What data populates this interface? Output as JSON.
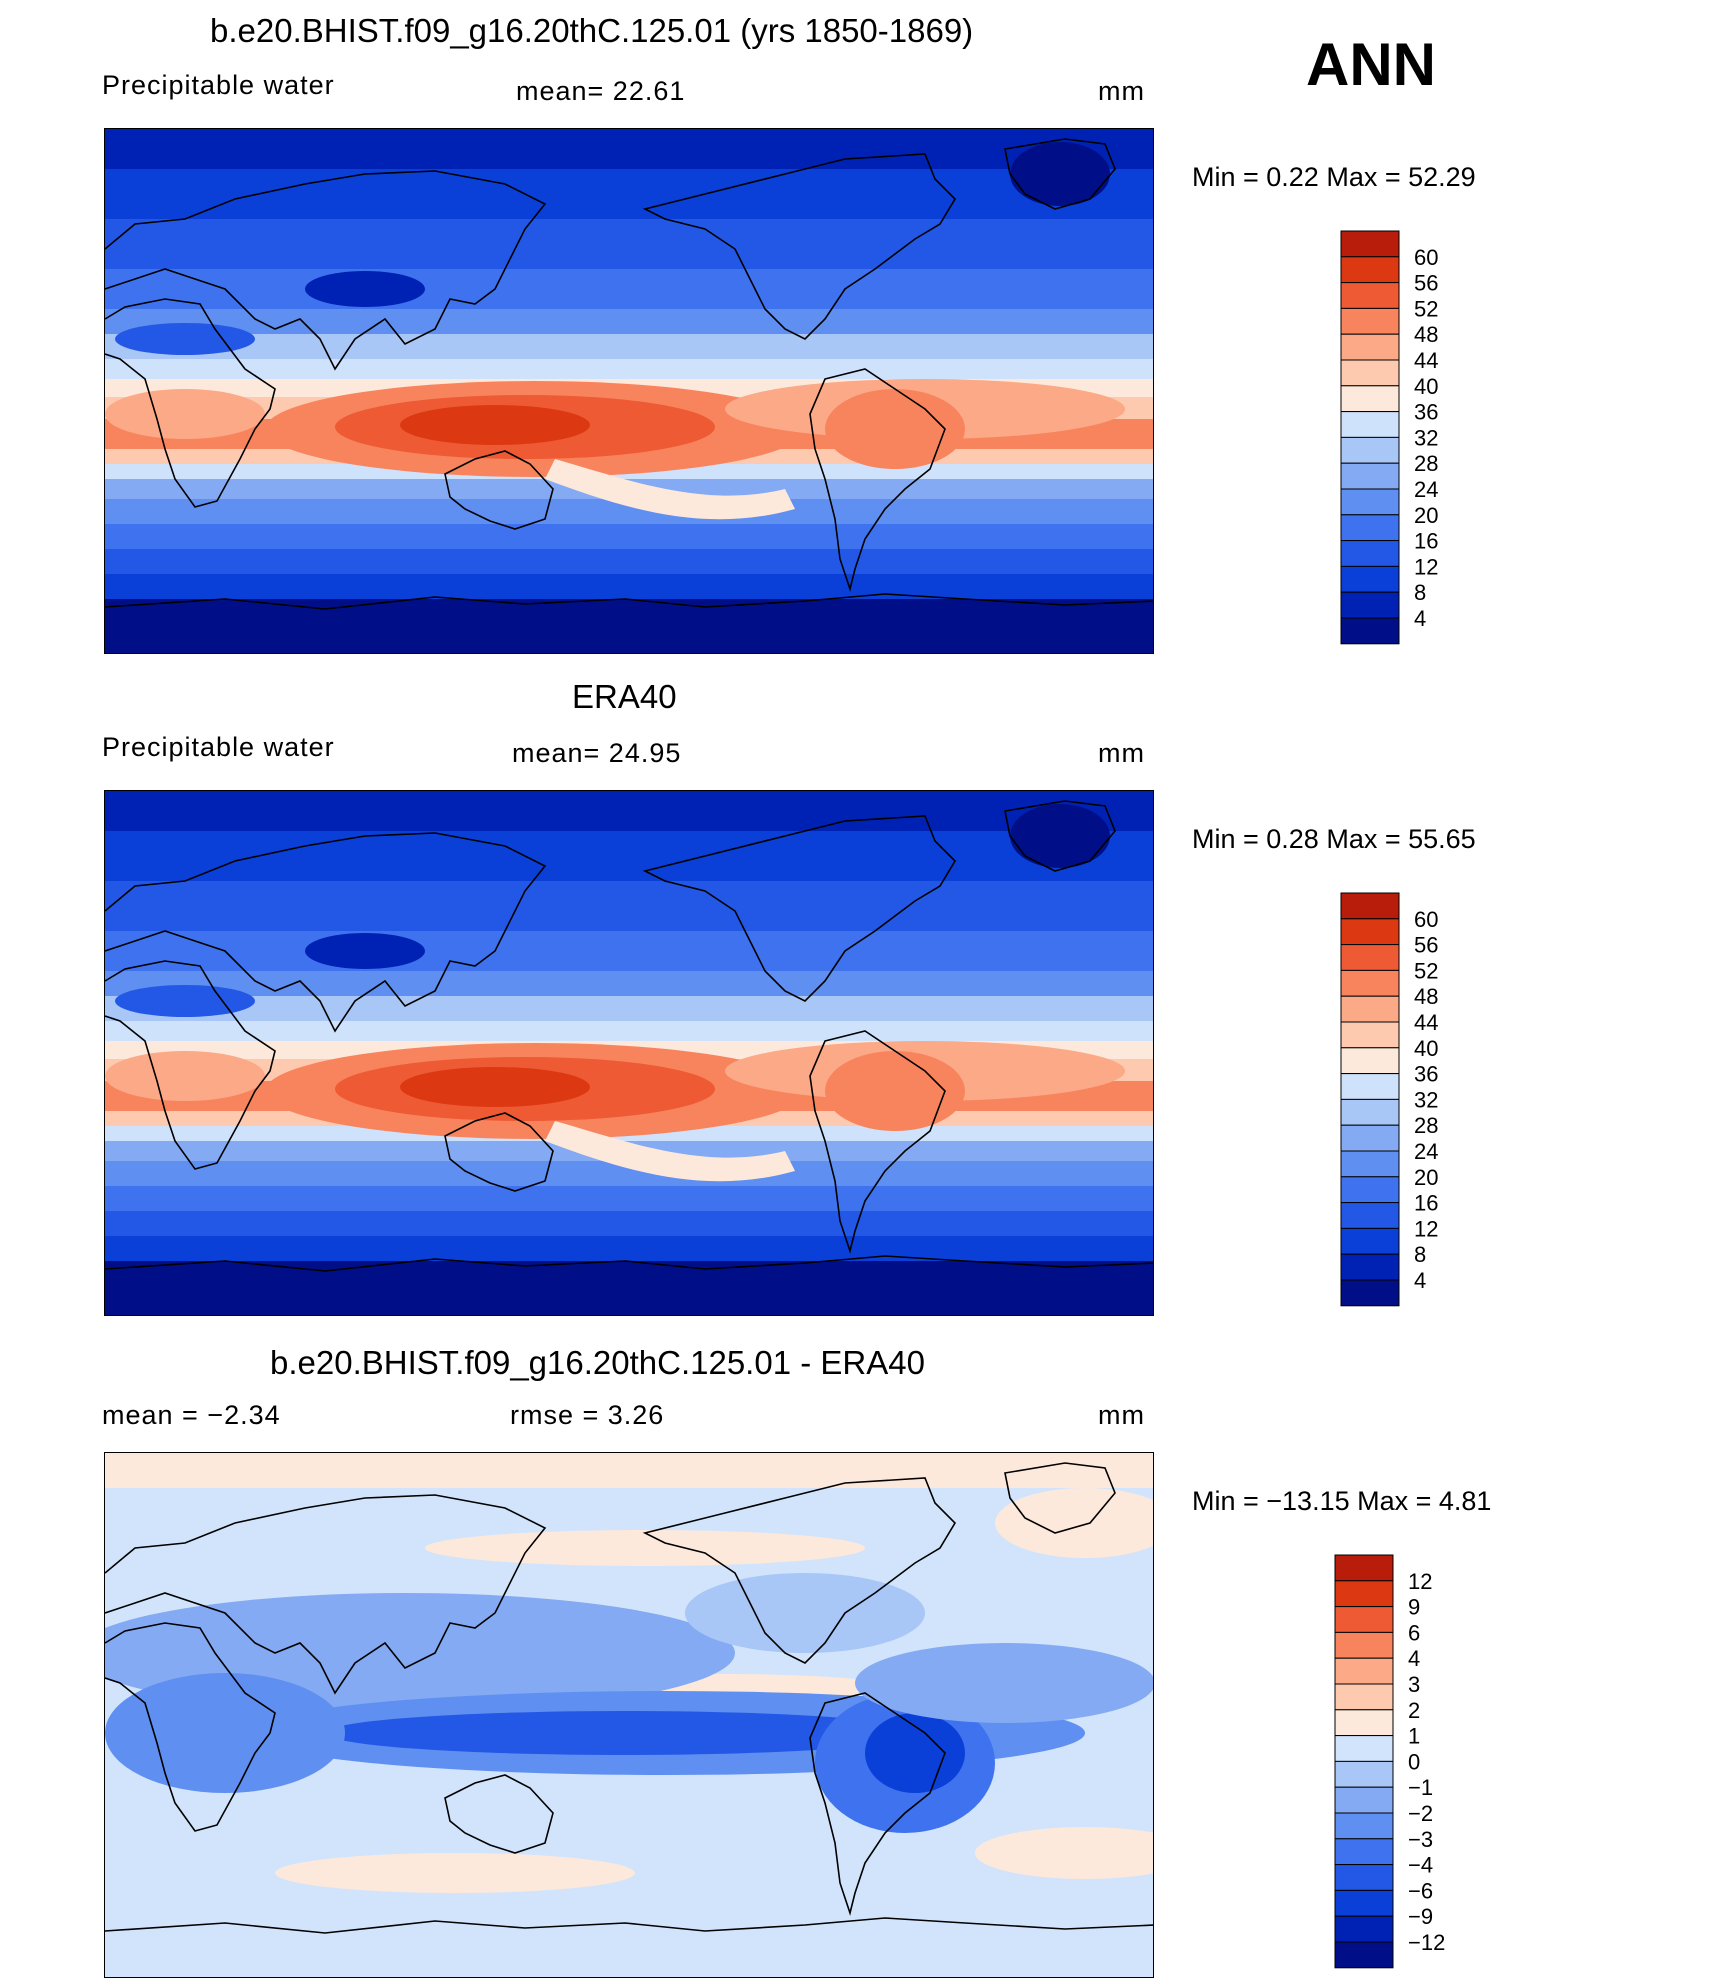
{
  "season": "ANN",
  "colors": {
    "abs_scale": [
      "#000f88",
      "#0022b4",
      "#0a3fd8",
      "#2358e6",
      "#3f72ee",
      "#5f8ff0",
      "#83aaf2",
      "#a8c6f6",
      "#cfe2fb",
      "#fde9dc",
      "#fdcab0",
      "#fca987",
      "#f8845e",
      "#ee5a33",
      "#dc3812",
      "#b81c0a",
      "#8c0a0a"
    ],
    "diff_scale": [
      "#000f88",
      "#0022b4",
      "#0a3fd8",
      "#2358e6",
      "#3f72ee",
      "#5f8ff0",
      "#83aaf2",
      "#a8c6f6",
      "#d2e4fb",
      "#fde9dc",
      "#fdcab0",
      "#fca987",
      "#f8845e",
      "#ee5a33",
      "#dc3812",
      "#b81c0a",
      "#8c0a0a"
    ]
  },
  "panels": [
    {
      "title": "b.e20.BHIST.f09_g16.20thC.125.01 (yrs 1850-1869)",
      "left_label": "Precipitable  water",
      "mid_label": "mean=   22.61",
      "units": "mm",
      "minmax": "Min  =      0.22  Max  =    52.29",
      "map_kind": "abs",
      "colorbar_ticks": [
        "60",
        "56",
        "52",
        "48",
        "44",
        "40",
        "36",
        "32",
        "28",
        "24",
        "20",
        "16",
        "12",
        "8",
        "4"
      ]
    },
    {
      "title": "ERA40",
      "left_label": "Precipitable  water",
      "mid_label": "mean=   24.95",
      "units": "mm",
      "minmax": "Min  =      0.28  Max  =    55.65",
      "map_kind": "abs",
      "colorbar_ticks": [
        "60",
        "56",
        "52",
        "48",
        "44",
        "40",
        "36",
        "32",
        "28",
        "24",
        "20",
        "16",
        "12",
        "8",
        "4"
      ]
    },
    {
      "title": "b.e20.BHIST.f09_g16.20thC.125.01 - ERA40",
      "left_label": "mean  =    −2.34",
      "mid_label": "rmse  =      3.26",
      "units": "mm",
      "minmax": "Min  = −13.15  Max  =      4.81",
      "map_kind": "diff",
      "colorbar_ticks": [
        "12",
        "9",
        "6",
        "4",
        "3",
        "2",
        "1",
        "0",
        "−1",
        "−2",
        "−3",
        "−4",
        "−6",
        "−9",
        "−12"
      ]
    }
  ],
  "chart_data": [
    {
      "type": "heatmap",
      "title": "b.e20.BHIST.f09_g16.20thC.125.01 (yrs 1850-1869)",
      "variable": "Precipitable  water",
      "units": "mm",
      "mean": 22.61,
      "min": 0.22,
      "max": 52.29,
      "colorbar_levels": [
        4,
        8,
        12,
        16,
        20,
        24,
        28,
        32,
        36,
        40,
        44,
        48,
        52,
        56,
        60
      ]
    },
    {
      "type": "heatmap",
      "title": "ERA40",
      "variable": "Precipitable  water",
      "units": "mm",
      "mean": 24.95,
      "min": 0.28,
      "max": 55.65,
      "colorbar_levels": [
        4,
        8,
        12,
        16,
        20,
        24,
        28,
        32,
        36,
        40,
        44,
        48,
        52,
        56,
        60
      ]
    },
    {
      "type": "heatmap",
      "title": "b.e20.BHIST.f09_g16.20thC.125.01 - ERA40",
      "units": "mm",
      "mean": -2.34,
      "rmse": 3.26,
      "min": -13.15,
      "max": 4.81,
      "colorbar_levels": [
        -12,
        -9,
        -6,
        -4,
        -3,
        -2,
        -1,
        0,
        1,
        2,
        3,
        4,
        6,
        9,
        12
      ]
    }
  ]
}
